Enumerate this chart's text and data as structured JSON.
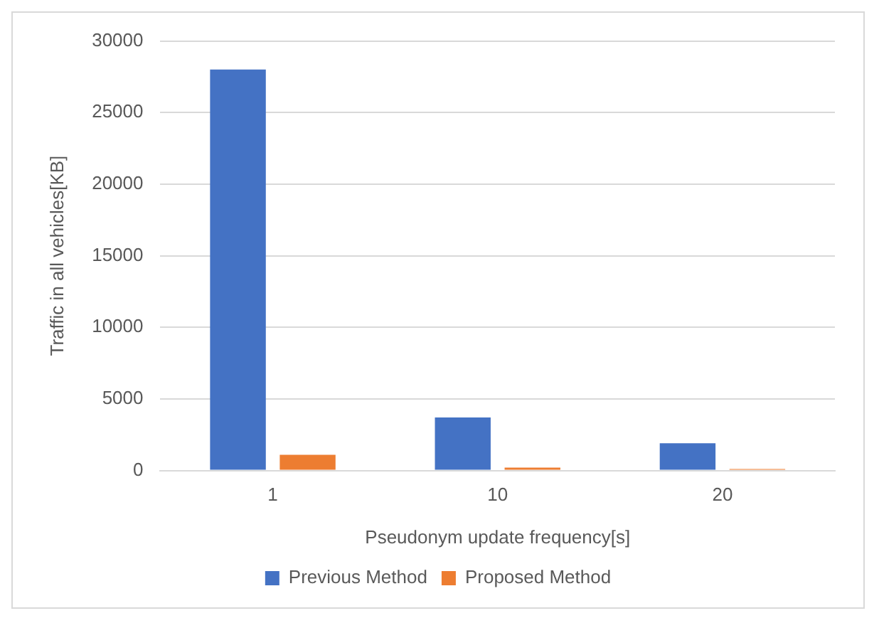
{
  "chart_data": {
    "type": "bar",
    "xlabel": "Pseudonym update frequency[s]",
    "ylabel": "Traffic in all vehicles[KB]",
    "categories": [
      "1",
      "10",
      "20"
    ],
    "series": [
      {
        "name": "Previous Method",
        "color": "#4472c4",
        "values": [
          28000,
          3700,
          1900
        ]
      },
      {
        "name": "Proposed Method",
        "color": "#ed7d31",
        "values": [
          1100,
          200,
          100
        ]
      }
    ],
    "ylim": [
      0,
      30000
    ],
    "yticks": [
      0,
      5000,
      10000,
      15000,
      20000,
      25000,
      30000
    ],
    "grid": "y",
    "legend": "bottom"
  }
}
